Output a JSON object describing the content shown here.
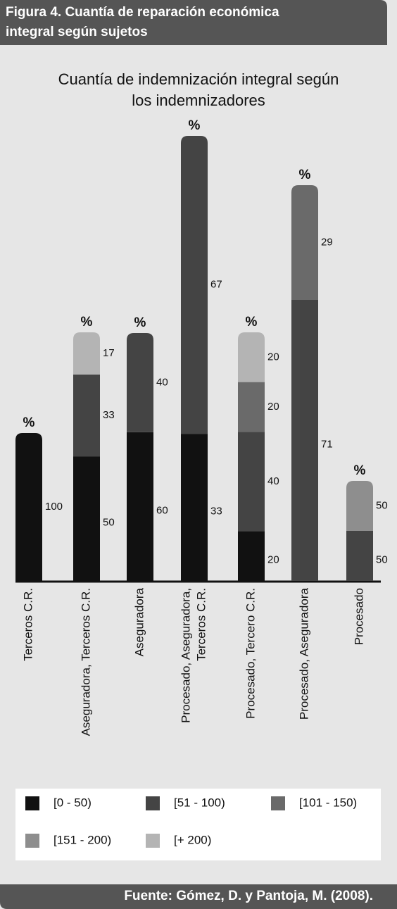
{
  "header": {
    "title_lines": [
      "Figura 4. Cuantía de reparación económica",
      "integral según sujetos"
    ]
  },
  "chart_data": {
    "type": "stacked_bar",
    "title_lines": [
      "Cuantía de indemnización integral según",
      "los indemnizadores"
    ],
    "unit_label": "%",
    "categories": [
      [
        "Terceros C.R."
      ],
      [
        "Aseguradora, Terceros C.R."
      ],
      [
        "Aseguradora"
      ],
      [
        "Procesado, Aseguradora,",
        "Terceros C.R."
      ],
      [
        "Procesado, Tercero C.R."
      ],
      [
        "Procesado, Aseguradora"
      ],
      [
        "Procesado"
      ]
    ],
    "series": [
      {
        "name": "[0 - 50)",
        "color": "#111111",
        "values": [
          100,
          50,
          60,
          33,
          20,
          null,
          null
        ]
      },
      {
        "name": "[51 - 100)",
        "color": "#444444",
        "values": [
          null,
          33,
          40,
          67,
          40,
          71,
          50
        ]
      },
      {
        "name": "[101 - 150)",
        "color": "#6a6a6a",
        "values": [
          null,
          null,
          null,
          null,
          20,
          29,
          null
        ]
      },
      {
        "name": "[151 - 200)",
        "color": "#8e8e8e",
        "values": [
          null,
          null,
          null,
          null,
          null,
          null,
          50
        ]
      },
      {
        "name": "[+ 200)",
        "color": "#b4b4b4",
        "values": [
          null,
          17,
          null,
          null,
          20,
          null,
          null
        ]
      }
    ]
  },
  "footer": {
    "source": "Fuente: Gómez, D. y Pantoja, M. (2008)."
  }
}
